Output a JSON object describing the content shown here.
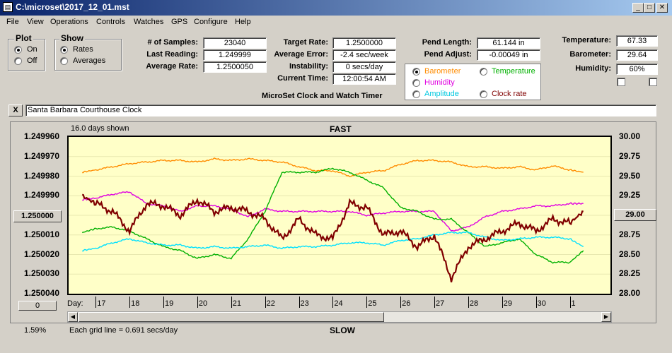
{
  "window": {
    "title": "C:\\microset\\2017_12_01.mst"
  },
  "menu": [
    "File",
    "View",
    "Operations",
    "Controls",
    "Watches",
    "GPS",
    "Configure",
    "Help"
  ],
  "plot_group": {
    "title": "Plot",
    "on": "On",
    "off": "Off"
  },
  "show_group": {
    "title": "Show",
    "rates": "Rates",
    "averages": "Averages"
  },
  "stats": {
    "samples_label": "# of Samples:",
    "samples": "23040",
    "last_label": "Last Reading:",
    "last": "1.249999",
    "avg_label": "Average Rate:",
    "avg": "1.2500050",
    "target_label": "Target Rate:",
    "target": "1.2500000",
    "error_label": "Average Error:",
    "error": "-2.4 sec/week",
    "instab_label": "Instability:",
    "instab": "0 secs/day",
    "time_label": "Current Time:",
    "time": "12:00:54 AM",
    "pend_len_label": "Pend Length:",
    "pend_len": "61.144 in",
    "pend_adj_label": "Pend Adjust:",
    "pend_adj": "-0.00049 in",
    "temp_label": "Temperature:",
    "temp": "67.33",
    "baro_label": "Barometer:",
    "baro": "29.64",
    "hum_label": "Humidity:",
    "hum": "60%"
  },
  "subtitle": "MicroSet Clock and Watch Timer",
  "series_select": {
    "barometer": "Barometer",
    "temperature": "Temperature",
    "humidity": "Humidity",
    "amplitude": "Amplitude",
    "clock_rate": "Clock rate"
  },
  "clock_name": "Santa Barbara Courthouse Clock",
  "close_x": "X",
  "plot": {
    "days_shown": "16.0 days shown",
    "fast": "FAST",
    "slow": "SLOW",
    "day_label": "Day:",
    "left_button": "1.250000",
    "right_button": "29.00",
    "zero_button": "0",
    "percent": "1.59%",
    "grid_note": "Each grid line = 0.691 secs/day"
  },
  "colors": {
    "barometer": "#ff8c00",
    "humidity": "#e000e0",
    "temperature": "#00b000",
    "amplitude": "#00e0ff",
    "rate": "#800000",
    "plot_bg": "#ffffc8"
  },
  "chart_data": {
    "type": "line",
    "y_left_ticks": [
      "1.249960",
      "1.249970",
      "1.249980",
      "1.249990",
      "1.250000",
      "1.250010",
      "1.250020",
      "1.250030",
      "1.250040"
    ],
    "y_right_ticks": [
      "30.00",
      "29.75",
      "29.50",
      "29.25",
      "29.00",
      "28.75",
      "28.50",
      "28.25",
      "28.00"
    ],
    "x_ticks": [
      "17",
      "18",
      "19",
      "20",
      "21",
      "22",
      "23",
      "24",
      "25",
      "26",
      "27",
      "28",
      "29",
      "30",
      "1"
    ],
    "ylim_left": [
      1.25004,
      1.24996
    ],
    "ylim_right": [
      28.0,
      30.0
    ],
    "x": [
      16.6,
      17.0,
      17.5,
      18.0,
      18.5,
      19.0,
      19.5,
      20.0,
      20.5,
      21.0,
      21.5,
      22.0,
      22.5,
      23.0,
      23.5,
      24.0,
      24.5,
      25.0,
      25.5,
      26.0,
      26.5,
      27.0,
      27.5,
      28.0,
      28.5,
      29.0,
      29.5,
      30.0,
      30.5,
      31.0,
      31.4
    ],
    "series": [
      {
        "name": "Barometer",
        "axis": "right",
        "values": [
          29.55,
          29.58,
          29.62,
          29.66,
          29.68,
          29.7,
          29.7,
          29.68,
          29.72,
          29.7,
          29.72,
          29.7,
          29.68,
          29.62,
          29.57,
          29.57,
          29.5,
          29.55,
          29.57,
          29.65,
          29.7,
          29.7,
          29.68,
          29.62,
          29.62,
          29.6,
          29.62,
          29.58,
          29.63,
          29.58,
          29.55
        ]
      },
      {
        "name": "Humidity",
        "axis": "right",
        "values": [
          29.2,
          29.22,
          29.27,
          29.3,
          29.15,
          29.12,
          29.05,
          29.12,
          29.12,
          29.08,
          28.98,
          29.08,
          29.05,
          29.05,
          29.05,
          29.05,
          29.05,
          29.0,
          29.03,
          29.05,
          29.05,
          29.05,
          28.8,
          28.85,
          28.98,
          29.05,
          29.08,
          29.12,
          29.12,
          29.15,
          29.15
        ]
      },
      {
        "name": "Temperature",
        "axis": "right",
        "values": [
          28.78,
          28.83,
          28.85,
          28.8,
          28.7,
          28.6,
          28.55,
          28.45,
          28.5,
          28.45,
          28.7,
          29.05,
          29.55,
          29.55,
          29.55,
          29.6,
          29.55,
          29.45,
          29.35,
          29.1,
          29.05,
          28.95,
          28.95,
          28.78,
          28.6,
          28.65,
          28.7,
          28.5,
          28.4,
          28.4,
          28.55
        ]
      },
      {
        "name": "Amplitude",
        "axis": "right",
        "values": [
          28.55,
          28.58,
          28.65,
          28.7,
          28.65,
          28.62,
          28.62,
          28.58,
          28.6,
          28.58,
          28.6,
          28.62,
          28.58,
          28.6,
          28.6,
          28.62,
          28.65,
          28.65,
          28.62,
          28.68,
          28.7,
          28.75,
          28.78,
          28.78,
          28.72,
          28.68,
          28.7,
          28.72,
          28.72,
          28.7,
          28.6
        ]
      },
      {
        "name": "Clock rate",
        "axis": "left",
        "values": [
          1.24999,
          1.249994,
          1.249998,
          1.250008,
          1.249994,
          1.249995,
          1.25,
          1.249992,
          1.249998,
          1.249996,
          1.249998,
          1.250002,
          1.250012,
          1.250002,
          1.25001,
          1.250012,
          1.249994,
          1.249996,
          1.25001,
          1.250008,
          1.250016,
          1.25001,
          1.250032,
          1.250016,
          1.250012,
          1.250008,
          1.250004,
          1.250008,
          1.250002,
          1.250004,
          1.249998
        ]
      }
    ]
  }
}
